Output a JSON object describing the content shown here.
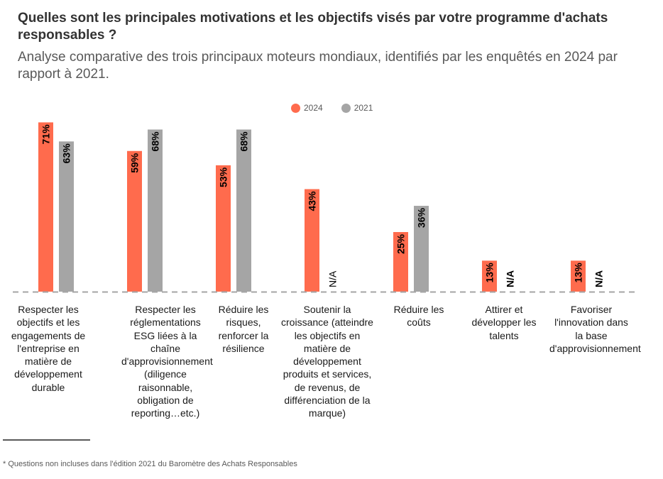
{
  "header": {
    "title": "Quelles sont les principales motivations et les objectifs visés par votre programme d'achats responsables ?",
    "subtitle": "Analyse comparative des trois principaux moteurs mondiaux, identifiés par les enquêtés en 2024 par rapport à 2021."
  },
  "footnote": "* Questions non incluses dans l'édition 2021 du Baromètre des Achats Responsables",
  "chart_data": {
    "type": "bar",
    "title": "Quelles sont les principales motivations et les objectifs visés par votre programme d'achats responsables ?",
    "subtitle": "Analyse comparative des trois principaux moteurs mondiaux, identifiés par les enquêtés en 2024 par rapport à 2021.",
    "xlabel": "",
    "ylabel": "",
    "ylim": [
      0,
      75
    ],
    "grid": false,
    "legend_position": "top-center",
    "value_suffix": "%",
    "na_label": "N/A",
    "categories": [
      "Respecter les objectifs et les engagements de l'entreprise en matière de développement durable",
      "Respecter les réglementations ESG liées à la chaîne d'approvisionnement (diligence raisonnable, obligation de reporting…etc.)",
      "Réduire les risques, renforcer la résilience",
      "Soutenir la croissance (atteindre les objectifs en matière de développement produits et services, de revenus, de différenciation de la marque)",
      "Réduire les coûts",
      "Attirer et développer les talents",
      "Favoriser l'innovation dans la base d'approvisionnement"
    ],
    "series": [
      {
        "name": "2024",
        "color": "#FF6B4D",
        "values": [
          71,
          59,
          53,
          43,
          25,
          13,
          13
        ]
      },
      {
        "name": "2021",
        "color": "#A5A5A5",
        "values": [
          63,
          68,
          68,
          null,
          36,
          null,
          null
        ]
      }
    ]
  }
}
